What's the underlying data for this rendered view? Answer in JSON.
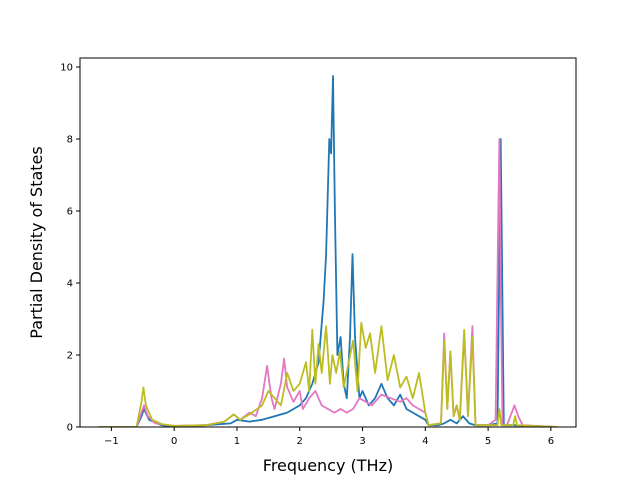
{
  "chart_data": {
    "type": "line",
    "title": "",
    "xlabel": "Frequency (THz)",
    "ylabel": "Partial Density of States",
    "xlim": [
      -1.5,
      6.4
    ],
    "ylim": [
      0,
      10.25
    ],
    "xticks": [
      -1,
      0,
      1,
      2,
      3,
      4,
      5,
      6
    ],
    "yticks": [
      0,
      2,
      4,
      6,
      8,
      10
    ],
    "grid": false,
    "legend": "none",
    "series": [
      {
        "color": "#1f77b4",
        "x": [
          -1.2,
          -0.6,
          -0.52,
          -0.48,
          -0.4,
          -0.2,
          0,
          0.5,
          0.9,
          1.0,
          1.2,
          1.4,
          1.6,
          1.8,
          2.0,
          2.1,
          2.2,
          2.3,
          2.38,
          2.42,
          2.47,
          2.5,
          2.53,
          2.56,
          2.6,
          2.65,
          2.7,
          2.75,
          2.8,
          2.84,
          2.88,
          2.95,
          3.0,
          3.1,
          3.2,
          3.3,
          3.4,
          3.5,
          3.6,
          3.7,
          3.8,
          3.9,
          4.0,
          4.05,
          4.2,
          4.3,
          4.4,
          4.5,
          4.6,
          4.7,
          4.8,
          5.0,
          5.15,
          5.2,
          5.25,
          5.4,
          6.1
        ],
        "y": [
          0,
          0,
          0.3,
          0.5,
          0.2,
          0.05,
          0.02,
          0.05,
          0.1,
          0.2,
          0.15,
          0.2,
          0.3,
          0.4,
          0.6,
          0.8,
          1.2,
          1.8,
          3.5,
          4.8,
          8.0,
          7.6,
          9.75,
          6.0,
          2.0,
          2.5,
          1.2,
          0.8,
          2.5,
          4.8,
          2.5,
          0.8,
          1.0,
          0.6,
          0.8,
          1.2,
          0.8,
          0.6,
          0.9,
          0.5,
          0.4,
          0.3,
          0.2,
          0.05,
          0.05,
          0.1,
          0.2,
          0.1,
          0.3,
          0.1,
          0.05,
          0.05,
          0.1,
          8.0,
          0.05,
          0.05,
          0
        ]
      },
      {
        "color": "#e377c2",
        "x": [
          -1.2,
          -0.6,
          -0.52,
          -0.48,
          -0.42,
          -0.3,
          0,
          0.5,
          0.8,
          0.95,
          1.05,
          1.2,
          1.3,
          1.4,
          1.48,
          1.55,
          1.6,
          1.7,
          1.75,
          1.8,
          1.9,
          2.0,
          2.05,
          2.15,
          2.25,
          2.35,
          2.45,
          2.55,
          2.65,
          2.75,
          2.85,
          2.95,
          3.05,
          3.15,
          3.3,
          3.45,
          3.6,
          3.7,
          3.8,
          3.9,
          4.0,
          4.05,
          4.25,
          4.3,
          4.35,
          4.4,
          4.45,
          4.5,
          4.55,
          4.62,
          4.68,
          4.75,
          4.8,
          4.9,
          5.0,
          5.12,
          5.16,
          5.18,
          5.2,
          5.23,
          5.3,
          5.42,
          5.48,
          5.55,
          6.1
        ],
        "y": [
          0,
          0,
          0.4,
          0.6,
          0.3,
          0.1,
          0.03,
          0.05,
          0.15,
          0.35,
          0.2,
          0.4,
          0.3,
          0.8,
          1.7,
          0.8,
          0.5,
          1.2,
          1.9,
          1.1,
          0.7,
          1.0,
          0.5,
          0.8,
          1.0,
          0.6,
          0.5,
          0.4,
          0.5,
          0.4,
          0.5,
          0.8,
          0.7,
          0.6,
          0.9,
          0.8,
          0.7,
          0.8,
          0.6,
          0.5,
          0.4,
          0.05,
          0.1,
          2.6,
          0.5,
          2.1,
          0.3,
          0.6,
          0.2,
          2.6,
          0.3,
          2.8,
          0.05,
          0.05,
          0.05,
          0.2,
          5.5,
          8.0,
          4.0,
          0.05,
          0.05,
          0.6,
          0.3,
          0.05,
          0
        ]
      },
      {
        "color": "#bcbd22",
        "x": [
          -1.2,
          -0.6,
          -0.52,
          -0.49,
          -0.45,
          -0.35,
          -0.2,
          0,
          0.5,
          0.8,
          0.95,
          1.05,
          1.2,
          1.4,
          1.5,
          1.6,
          1.7,
          1.8,
          1.9,
          2.0,
          2.1,
          2.15,
          2.2,
          2.25,
          2.3,
          2.35,
          2.42,
          2.48,
          2.52,
          2.58,
          2.64,
          2.7,
          2.78,
          2.85,
          2.92,
          2.98,
          3.05,
          3.12,
          3.2,
          3.3,
          3.4,
          3.5,
          3.6,
          3.7,
          3.8,
          3.9,
          4.0,
          4.05,
          4.25,
          4.3,
          4.35,
          4.4,
          4.45,
          4.5,
          4.55,
          4.62,
          4.68,
          4.75,
          4.8,
          4.9,
          5.15,
          5.18,
          5.21,
          5.4,
          5.43,
          5.46,
          6.1
        ],
        "y": [
          0,
          0,
          0.7,
          1.1,
          0.6,
          0.2,
          0.08,
          0.03,
          0.05,
          0.15,
          0.35,
          0.2,
          0.35,
          0.6,
          1.0,
          0.8,
          0.6,
          1.5,
          1.0,
          1.2,
          1.8,
          1.0,
          2.7,
          1.2,
          2.3,
          1.5,
          2.8,
          1.2,
          2.0,
          1.5,
          2.1,
          1.1,
          1.8,
          2.4,
          1.0,
          2.9,
          2.2,
          2.6,
          1.5,
          2.8,
          1.3,
          2.0,
          1.1,
          1.4,
          0.8,
          1.5,
          0.4,
          0.05,
          0.1,
          2.4,
          0.5,
          2.1,
          0.3,
          0.6,
          0.2,
          2.7,
          0.3,
          2.5,
          0.05,
          0.05,
          0.05,
          0.5,
          0.05,
          0.05,
          0.3,
          0.05,
          0
        ]
      }
    ]
  }
}
